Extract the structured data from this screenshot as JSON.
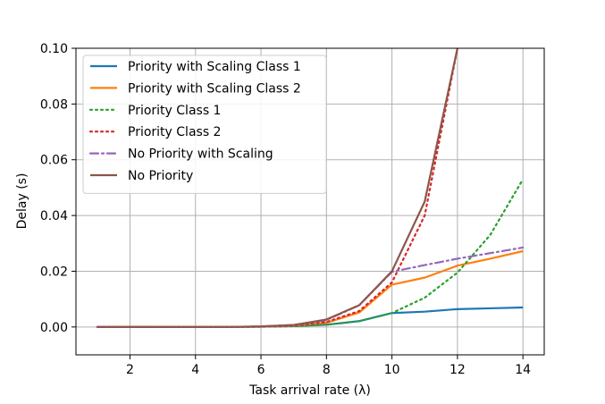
{
  "chart_data": {
    "type": "line",
    "xlabel": "Task arrival rate (λ)",
    "ylabel": "Delay (s)",
    "xlim": [
      0.35,
      14.65
    ],
    "ylim": [
      -0.01,
      0.1
    ],
    "xticks": [
      2,
      4,
      6,
      8,
      10,
      12,
      14
    ],
    "xtick_labels": [
      "2",
      "4",
      "6",
      "8",
      "10",
      "12",
      "14"
    ],
    "yticks": [
      0.0,
      0.02,
      0.04,
      0.06,
      0.08,
      0.1
    ],
    "ytick_labels": [
      "0.00",
      "0.02",
      "0.04",
      "0.06",
      "0.08",
      "0.10"
    ],
    "grid": true,
    "legend_position": "top-left",
    "series": [
      {
        "name": "Priority with Scaling Class 1",
        "color": "#1f77b4",
        "linestyle": "solid",
        "x": [
          1,
          2,
          3,
          4,
          5,
          6,
          7,
          8,
          9,
          10,
          11,
          12,
          13,
          14
        ],
        "y": [
          0,
          0,
          0,
          0,
          0,
          0.0001,
          0.0003,
          0.0008,
          0.0021,
          0.005,
          0.0055,
          0.0064,
          0.0067,
          0.007
        ]
      },
      {
        "name": "Priority with Scaling Class 2",
        "color": "#ff7f0e",
        "linestyle": "solid",
        "x": [
          1,
          2,
          3,
          4,
          5,
          6,
          7,
          8,
          9,
          10,
          11,
          12,
          13,
          14
        ],
        "y": [
          0,
          0,
          0,
          0,
          0,
          0.0001,
          0.0004,
          0.0015,
          0.0052,
          0.0152,
          0.0177,
          0.022,
          0.0245,
          0.0272
        ]
      },
      {
        "name": "Priority Class 1",
        "color": "#2ca02c",
        "linestyle": "dotted",
        "x": [
          1,
          2,
          3,
          4,
          5,
          6,
          7,
          8,
          9,
          10,
          11,
          12,
          13,
          14
        ],
        "y": [
          0,
          0,
          0,
          0,
          0,
          0.0001,
          0.0003,
          0.0008,
          0.0021,
          0.005,
          0.0105,
          0.0195,
          0.033,
          0.053
        ]
      },
      {
        "name": "Priority Class 2",
        "color": "#d62728",
        "linestyle": "dotted",
        "x": [
          1,
          2,
          3,
          4,
          5,
          6,
          7,
          8,
          9,
          10,
          11,
          12
        ],
        "y": [
          0,
          0,
          0,
          0,
          0,
          0.0001,
          0.0005,
          0.0018,
          0.0057,
          0.016,
          0.04,
          0.1
        ]
      },
      {
        "name": "No Priority with Scaling",
        "color": "#9467bd",
        "linestyle": "dashdot",
        "x": [
          1,
          2,
          3,
          4,
          5,
          6,
          7,
          8,
          9,
          10,
          11,
          12,
          13,
          14
        ],
        "y": [
          0,
          0,
          0,
          0,
          0,
          0.0002,
          0.0007,
          0.0025,
          0.0078,
          0.0198,
          0.0222,
          0.0245,
          0.0265,
          0.0285
        ]
      },
      {
        "name": "No Priority",
        "color": "#8c564b",
        "linestyle": "solid",
        "x": [
          1,
          2,
          3,
          4,
          5,
          6,
          7,
          8,
          9,
          10,
          11,
          12
        ],
        "y": [
          0,
          0,
          0,
          0,
          0,
          0.0002,
          0.0007,
          0.0027,
          0.0078,
          0.02,
          0.045,
          0.1
        ]
      }
    ]
  }
}
